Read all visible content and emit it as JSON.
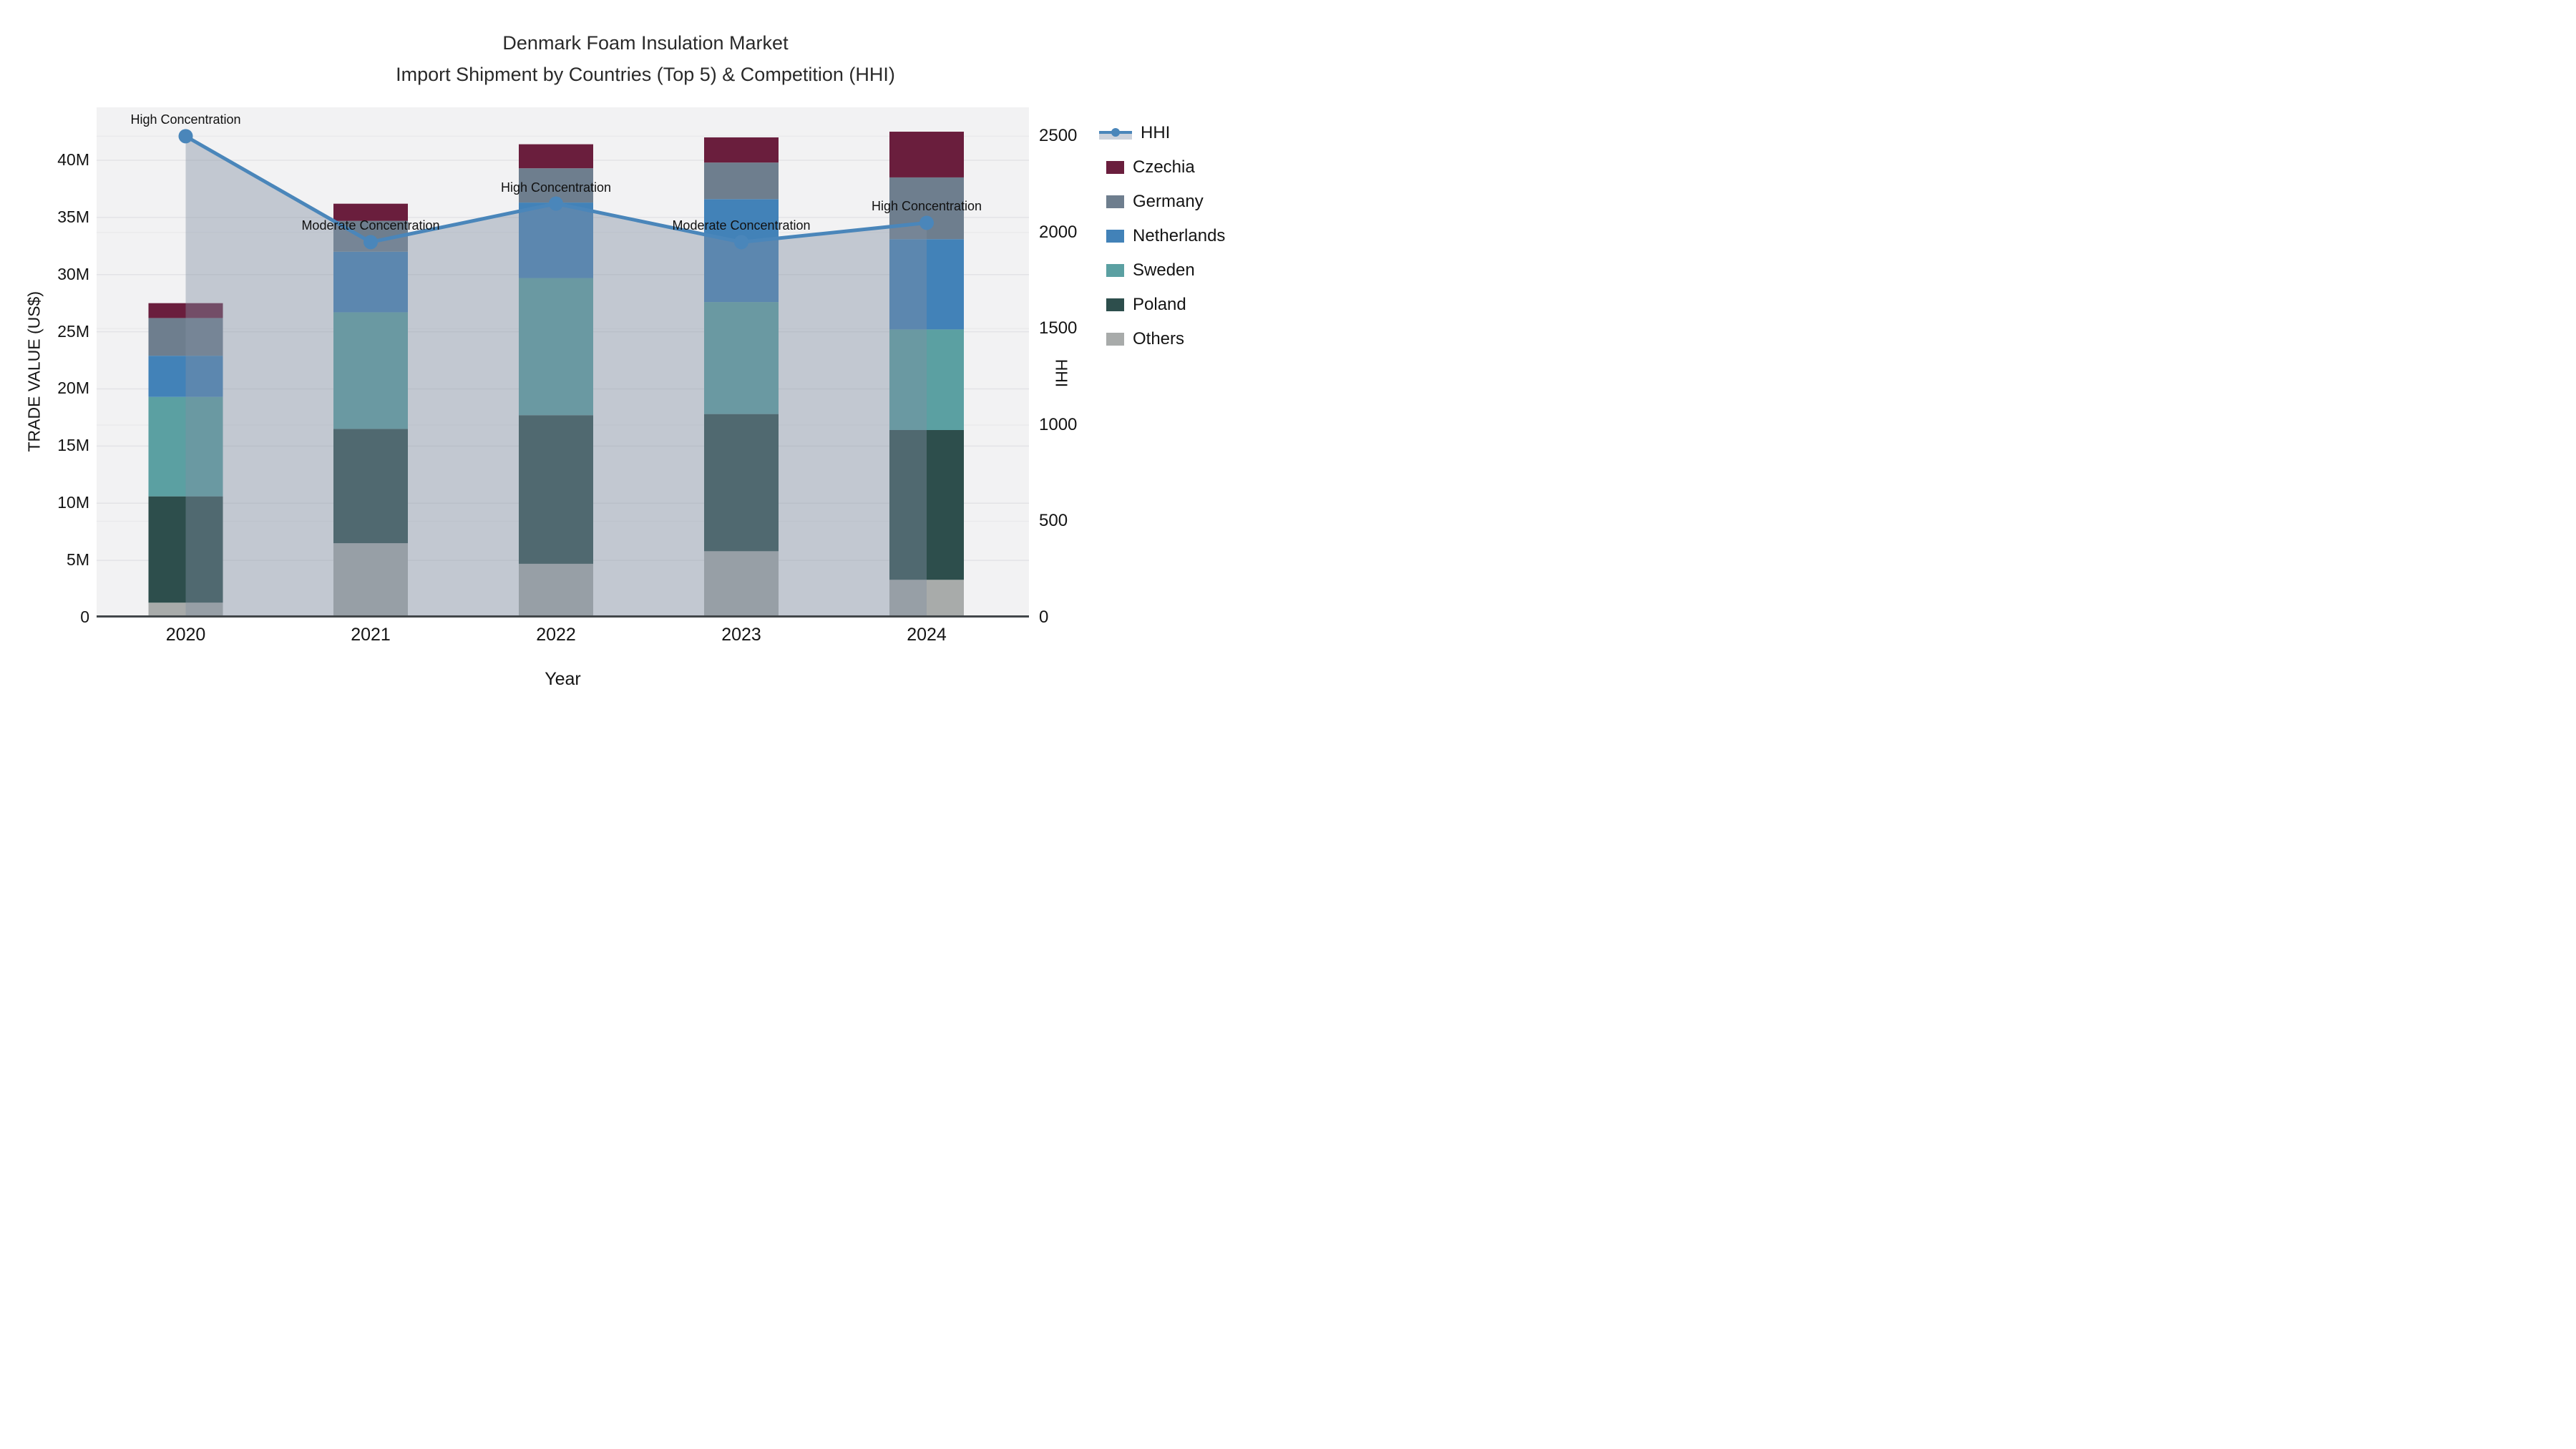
{
  "title": {
    "line1": "Denmark Foam Insulation Market",
    "line2": "Import Shipment by Countries (Top 5) & Competition (HHI)"
  },
  "axes": {
    "y_left": {
      "title": "TRADE VALUE (US$)",
      "ticks": [
        "0",
        "5M",
        "10M",
        "15M",
        "20M",
        "25M",
        "30M",
        "35M",
        "40M"
      ],
      "tick_values_m": [
        0,
        5,
        10,
        15,
        20,
        25,
        30,
        35,
        40
      ],
      "max_m": 44.63
    },
    "y_right": {
      "title": "HHI",
      "ticks": [
        "0",
        "500",
        "1000",
        "1500",
        "2000",
        "2500"
      ],
      "tick_values": [
        0,
        500,
        1000,
        1500,
        2000,
        2500
      ],
      "max": 2650
    },
    "x": {
      "title": "Year",
      "ticks": [
        "2020",
        "2021",
        "2022",
        "2023",
        "2024"
      ]
    }
  },
  "chart_data": {
    "type": "bar+line",
    "categories": [
      "2020",
      "2021",
      "2022",
      "2023",
      "2024"
    ],
    "bar_unit": "million US$",
    "stack_order_bottom_to_top": [
      "Others",
      "Poland",
      "Sweden",
      "Netherlands",
      "Germany",
      "Czechia"
    ],
    "series": [
      {
        "name": "Czechia",
        "color": "#6a1e3d",
        "values": [
          1.3,
          1.5,
          2.1,
          2.2,
          4.0
        ]
      },
      {
        "name": "Germany",
        "color": "#6e7e8e",
        "values": [
          3.3,
          2.7,
          3.0,
          3.2,
          5.4
        ]
      },
      {
        "name": "Netherlands",
        "color": "#4282b8",
        "values": [
          3.6,
          5.3,
          6.6,
          9.0,
          7.9
        ]
      },
      {
        "name": "Sweden",
        "color": "#5ba0a2",
        "values": [
          8.7,
          10.2,
          12.0,
          9.8,
          8.8
        ]
      },
      {
        "name": "Poland",
        "color": "#2d4e4c",
        "values": [
          9.3,
          10.0,
          13.0,
          12.0,
          13.1
        ]
      },
      {
        "name": "Others",
        "color": "#a8abaa",
        "values": [
          1.3,
          6.5,
          4.7,
          5.8,
          3.3
        ]
      }
    ],
    "totals_m": [
      27.5,
      36.2,
      41.4,
      42.0,
      42.5
    ],
    "hhi_line": {
      "name": "HHI",
      "values": [
        2500,
        1950,
        2150,
        1950,
        2050
      ],
      "line_color": "#4a86ba",
      "area_fill_color": "rgba(128,143,162,0.42)"
    },
    "annotations": [
      {
        "year": "2020",
        "text": "High Concentration"
      },
      {
        "year": "2021",
        "text": "Moderate Concentration"
      },
      {
        "year": "2022",
        "text": "High Concentration"
      },
      {
        "year": "2023",
        "text": "Moderate Concentration"
      },
      {
        "year": "2024",
        "text": "High Concentration"
      }
    ],
    "legend_position": "right",
    "grid": true
  },
  "legend": {
    "items": [
      {
        "label": "HHI",
        "type": "line",
        "color": "#4a86ba"
      },
      {
        "label": "Czechia",
        "type": "swatch",
        "color": "#6a1e3d"
      },
      {
        "label": "Germany",
        "type": "swatch",
        "color": "#6e7e8e"
      },
      {
        "label": "Netherlands",
        "type": "swatch",
        "color": "#4282b8"
      },
      {
        "label": "Sweden",
        "type": "swatch",
        "color": "#5ba0a2"
      },
      {
        "label": "Poland",
        "type": "swatch",
        "color": "#2d4e4c"
      },
      {
        "label": "Others",
        "type": "swatch",
        "color": "#a8abaa"
      }
    ]
  },
  "colors": {
    "plot_bg": "#f2f2f3",
    "grid_major": "#e3e3e6",
    "grid_minor": "#eaeaec",
    "axis_line": "#42474a",
    "text": "#141414"
  }
}
